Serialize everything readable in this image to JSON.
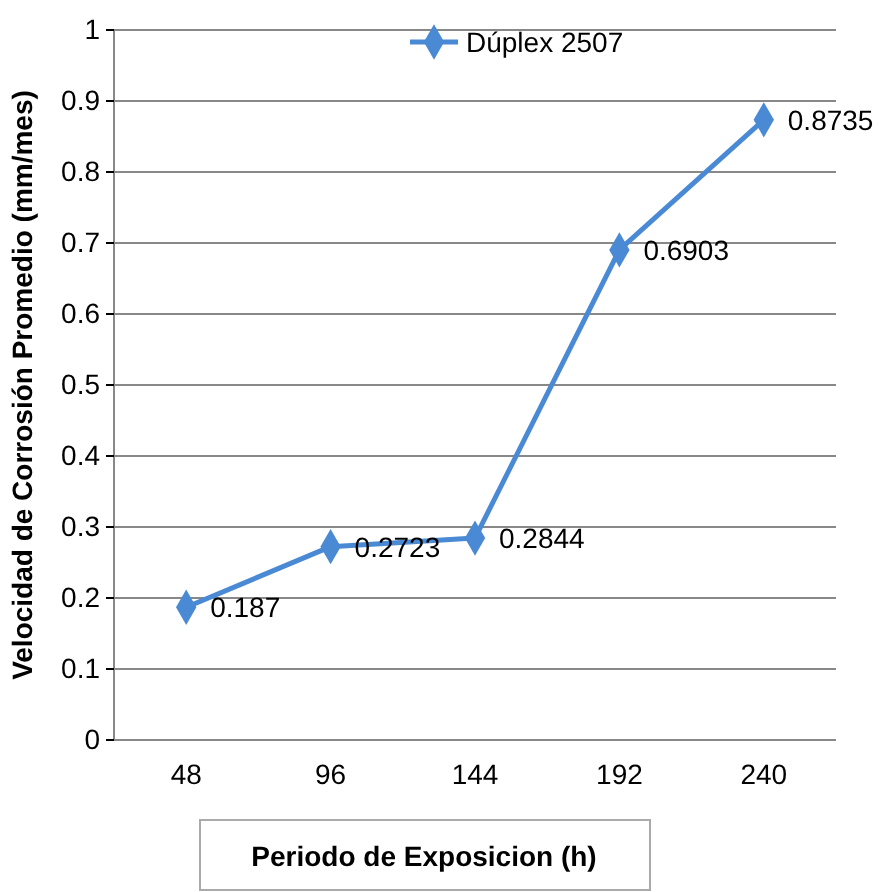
{
  "chart_data": {
    "type": "line",
    "xlabel": "Periodo de Exposicion (h)",
    "ylabel": "Velocidad de Corrosión Promedio (mm/mes)",
    "categories": [
      "48",
      "96",
      "144",
      "192",
      "240"
    ],
    "series": [
      {
        "name": "Dúplex 2507",
        "color": "#4a8ad4",
        "values": [
          0.187,
          0.2723,
          0.2844,
          0.6903,
          0.8735
        ]
      }
    ],
    "ylim": [
      0,
      1
    ],
    "yticks": [
      0,
      0.1,
      0.2,
      0.3,
      0.4,
      0.5,
      0.6,
      0.7,
      0.8,
      0.9,
      1
    ],
    "grid": "y",
    "legend": "top",
    "marker": "diamond",
    "line_style": "solid",
    "data_labels": true
  }
}
